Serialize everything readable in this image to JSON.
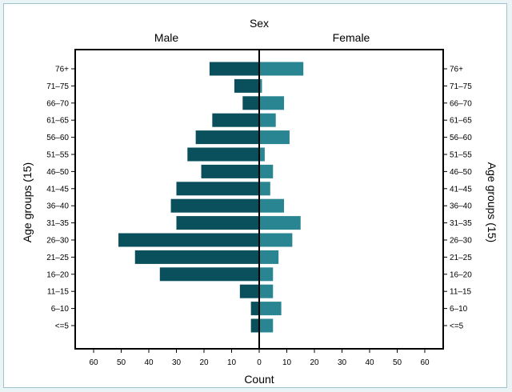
{
  "chart_data": {
    "type": "bar",
    "orientation": "horizontal",
    "layout": "population pyramid",
    "title": "Sex",
    "xlabel": "Count",
    "ylabel_left": "Age groups (15)",
    "ylabel_right": "Age groups (15)",
    "xlim": [
      0,
      65
    ],
    "xticks": [
      0,
      10,
      20,
      30,
      40,
      50,
      60
    ],
    "grid": false,
    "categories": [
      "<=5",
      "6–10",
      "11–15",
      "16–20",
      "21–25",
      "26–30",
      "31–35",
      "36–40",
      "41–45",
      "46–50",
      "51–55",
      "56–60",
      "61–65",
      "66–70",
      "71–75",
      "76+"
    ],
    "series": [
      {
        "name": "Male",
        "side": "left",
        "color": "#0a4f5c",
        "values": [
          3,
          3,
          7,
          36,
          45,
          51,
          30,
          32,
          30,
          21,
          26,
          23,
          17,
          6,
          9,
          18
        ]
      },
      {
        "name": "Female",
        "side": "right",
        "color": "#2a8592",
        "values": [
          5,
          8,
          5,
          5,
          7,
          12,
          15,
          9,
          4,
          5,
          2,
          11,
          6,
          9,
          1,
          16
        ]
      }
    ]
  }
}
